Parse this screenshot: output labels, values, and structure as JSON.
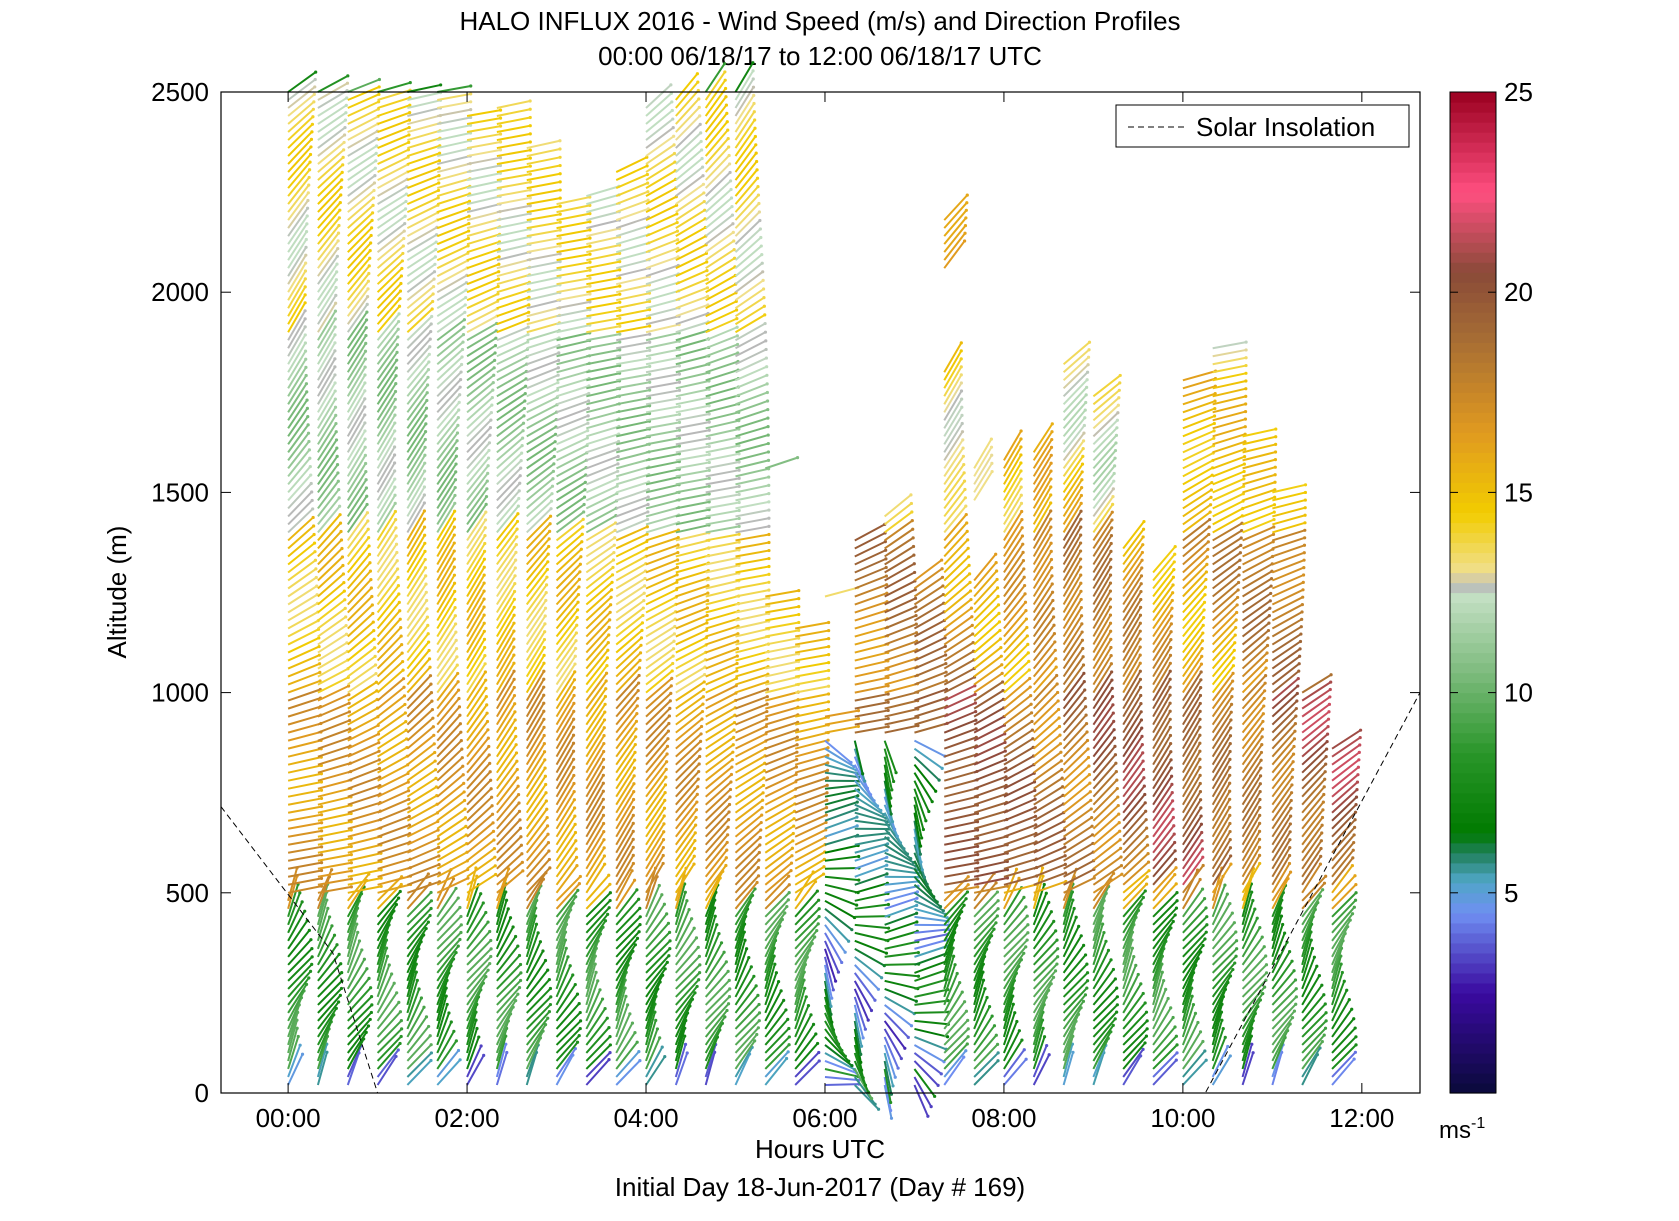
{
  "chart_data": {
    "type": "scatter",
    "title": "HALO INFLUX 2016 - Wind Speed (m/s) and Direction Profiles",
    "subtitle": "00:00 06/18/17 to 12:00 06/18/17  UTC",
    "xlabel": "Hours UTC",
    "footer": "Initial Day 18-Jun-2017 (Day # 169)",
    "ylabel": "Altitude (m)",
    "colorbar_unit": "ms",
    "colorbar_unit_exp": "-1",
    "xlim_hours": [
      -0.75,
      12.65
    ],
    "ylim": [
      0,
      2500
    ],
    "x_ticks": [
      {
        "hour": 0,
        "label": "00:00"
      },
      {
        "hour": 2,
        "label": "02:00"
      },
      {
        "hour": 4,
        "label": "04:00"
      },
      {
        "hour": 6,
        "label": "06:00"
      },
      {
        "hour": 8,
        "label": "08:00"
      },
      {
        "hour": 10,
        "label": "10:00"
      },
      {
        "hour": 12,
        "label": "12:00"
      }
    ],
    "y_ticks": [
      {
        "value": 0,
        "label": "0"
      },
      {
        "value": 500,
        "label": "500"
      },
      {
        "value": 1000,
        "label": "1000"
      },
      {
        "value": 1500,
        "label": "1500"
      },
      {
        "value": 2000,
        "label": "2000"
      },
      {
        "value": 2500,
        "label": "2500"
      }
    ],
    "colorbar": {
      "range": [
        0,
        25
      ],
      "ticks": [
        {
          "value": 5,
          "label": "5"
        },
        {
          "value": 10,
          "label": "10"
        },
        {
          "value": 15,
          "label": "15"
        },
        {
          "value": 20,
          "label": "20"
        },
        {
          "value": 25,
          "label": "25"
        }
      ],
      "stops": [
        {
          "v": 0,
          "color": "#0a0a3a"
        },
        {
          "v": 2.5,
          "color": "#3a0aa0"
        },
        {
          "v": 4.5,
          "color": "#6f8ff2"
        },
        {
          "v": 5.3,
          "color": "#4fa6c6"
        },
        {
          "v": 6.0,
          "color": "#1f7f5a"
        },
        {
          "v": 6.5,
          "color": "#007a00"
        },
        {
          "v": 8.5,
          "color": "#2a962a"
        },
        {
          "v": 10.5,
          "color": "#7dbb7d"
        },
        {
          "v": 12.4,
          "color": "#c3dfc3"
        },
        {
          "v": 12.7,
          "color": "#b8b8b8"
        },
        {
          "v": 13.0,
          "color": "#f0e090"
        },
        {
          "v": 14.5,
          "color": "#f2cc00"
        },
        {
          "v": 16.5,
          "color": "#e09a20"
        },
        {
          "v": 19.0,
          "color": "#a36a35"
        },
        {
          "v": 20.5,
          "color": "#8a4a38"
        },
        {
          "v": 22.5,
          "color": "#ff4f80"
        },
        {
          "v": 25,
          "color": "#9a0020"
        }
      ]
    },
    "legend": {
      "placement": "top-right",
      "entries": [
        "Solar Insolation"
      ]
    },
    "solar_insolation": {
      "style": "dashed",
      "x_hours": [
        -0.75,
        0.5,
        1.0,
        10.25,
        12.65
      ],
      "y_altitude": [
        715,
        350,
        0,
        0,
        1000
      ]
    },
    "wind_profiles": {
      "description_note": "",
      "profile_hours": [
        0,
        0.333,
        0.667,
        1.0,
        1.333,
        1.667,
        2.0,
        2.333,
        2.667,
        3.0,
        3.333,
        3.667,
        4.0,
        4.333,
        4.667,
        5.0,
        5.333,
        5.667,
        6.0,
        6.333,
        6.667,
        7.0,
        7.333,
        7.667,
        8.0,
        8.333,
        8.667,
        9.0,
        9.333,
        9.667,
        10.0,
        10.333,
        10.667,
        11.0,
        11.333,
        11.667
      ],
      "top_altitude_m": [
        2500,
        2500,
        2500,
        2500,
        2500,
        2500,
        2450,
        2460,
        2360,
        2220,
        2250,
        2300,
        2470,
        2480,
        2500,
        2500,
        1570,
        1160,
        1240,
        1380,
        1450,
        1280,
        2180,
        1560,
        1580,
        1600,
        1820,
        1740,
        1370,
        1300,
        1780,
        1870,
        1640,
        1500,
        1000,
        870
      ],
      "bottom_altitude_m": [
        20,
        20,
        20,
        20,
        20,
        20,
        20,
        20,
        20,
        20,
        20,
        20,
        20,
        20,
        20,
        20,
        20,
        20,
        20,
        20,
        20,
        20,
        20,
        20,
        20,
        20,
        20,
        20,
        20,
        20,
        20,
        20,
        20,
        20,
        20,
        20
      ],
      "gap_ranges_m": [
        {
          "hour": 5.333,
          "gap": [
            1250,
            1560
          ]
        },
        {
          "hour": 6.0,
          "gap": [
            950,
            1230
          ]
        },
        {
          "hour": 7.333,
          "gap": [
            1800,
            2060
          ]
        },
        {
          "hour": 7.667,
          "gap": [
            1280,
            1480
          ]
        }
      ],
      "speed_by_level": [
        {
          "alt_min": 0,
          "alt_max": 60,
          "speed_ms": 4.5
        },
        {
          "alt_min": 60,
          "alt_max": 450,
          "speed_ms": 8.5
        },
        {
          "alt_min": 450,
          "alt_max": 1000,
          "speed_ms": 16.5
        },
        {
          "alt_min": 1000,
          "alt_max": 1400,
          "speed_ms": 14.5
        },
        {
          "alt_min": 1400,
          "alt_max": 1900,
          "speed_ms": 11.5
        },
        {
          "alt_min": 1900,
          "alt_max": 2500,
          "speed_ms": 13.5
        }
      ]
    }
  }
}
